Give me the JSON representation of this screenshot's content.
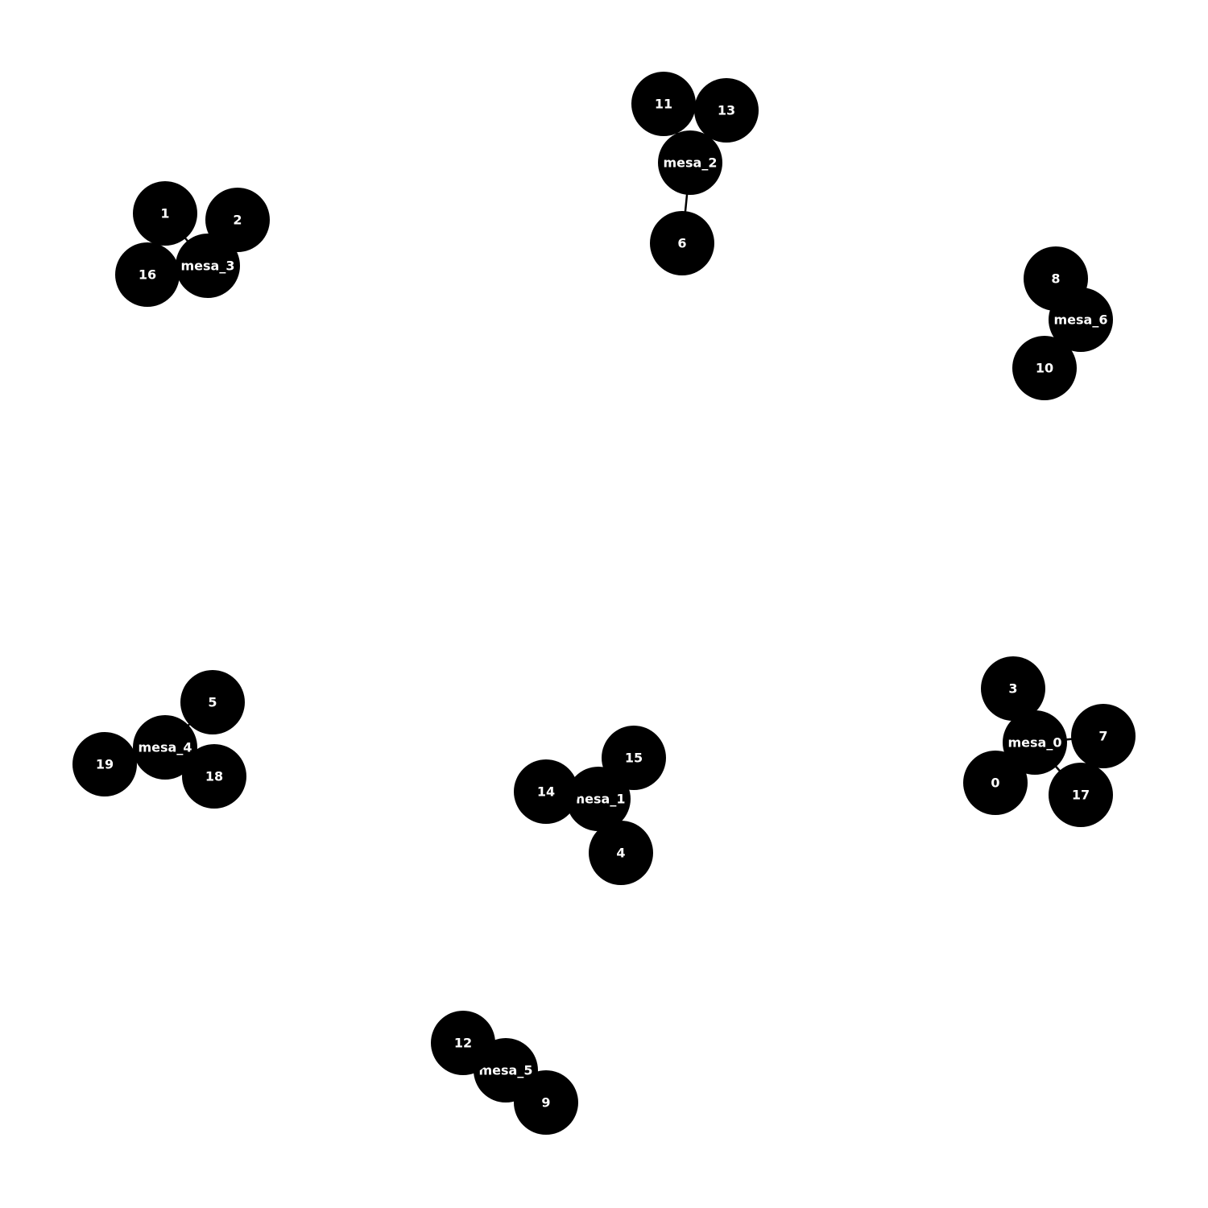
{
  "graph": {
    "nodes": [
      {
        "id": "mesa_0",
        "label": "mesa_0"
      },
      {
        "id": "mesa_1",
        "label": "mesa_1"
      },
      {
        "id": "mesa_2",
        "label": "mesa_2"
      },
      {
        "id": "mesa_3",
        "label": "mesa_3"
      },
      {
        "id": "mesa_4",
        "label": "mesa_4"
      },
      {
        "id": "mesa_5",
        "label": "mesa_5"
      },
      {
        "id": "mesa_6",
        "label": "mesa_6"
      },
      {
        "id": "0",
        "label": "0"
      },
      {
        "id": "1",
        "label": "1"
      },
      {
        "id": "2",
        "label": "2"
      },
      {
        "id": "3",
        "label": "3"
      },
      {
        "id": "4",
        "label": "4"
      },
      {
        "id": "5",
        "label": "5"
      },
      {
        "id": "6",
        "label": "6"
      },
      {
        "id": "7",
        "label": "7"
      },
      {
        "id": "8",
        "label": "8"
      },
      {
        "id": "9",
        "label": "9"
      },
      {
        "id": "10",
        "label": "10"
      },
      {
        "id": "11",
        "label": "11"
      },
      {
        "id": "12",
        "label": "12"
      },
      {
        "id": "13",
        "label": "13"
      },
      {
        "id": "14",
        "label": "14"
      },
      {
        "id": "15",
        "label": "15"
      },
      {
        "id": "16",
        "label": "16"
      },
      {
        "id": "17",
        "label": "17"
      },
      {
        "id": "18",
        "label": "18"
      },
      {
        "id": "19",
        "label": "19"
      }
    ],
    "edges": [
      [
        "mesa_0",
        "0"
      ],
      [
        "mesa_0",
        "3"
      ],
      [
        "mesa_0",
        "7"
      ],
      [
        "mesa_0",
        "17"
      ],
      [
        "mesa_1",
        "4"
      ],
      [
        "mesa_1",
        "14"
      ],
      [
        "mesa_1",
        "15"
      ],
      [
        "mesa_2",
        "6"
      ],
      [
        "mesa_2",
        "11"
      ],
      [
        "mesa_2",
        "13"
      ],
      [
        "mesa_3",
        "1"
      ],
      [
        "mesa_3",
        "2"
      ],
      [
        "mesa_3",
        "16"
      ],
      [
        "mesa_4",
        "5"
      ],
      [
        "mesa_4",
        "18"
      ],
      [
        "mesa_4",
        "19"
      ],
      [
        "mesa_5",
        "9"
      ],
      [
        "mesa_5",
        "12"
      ],
      [
        "mesa_6",
        "8"
      ],
      [
        "mesa_6",
        "10"
      ]
    ],
    "node_color": "#000000",
    "label_color": "#ffffff",
    "edge_color": "#000000"
  }
}
